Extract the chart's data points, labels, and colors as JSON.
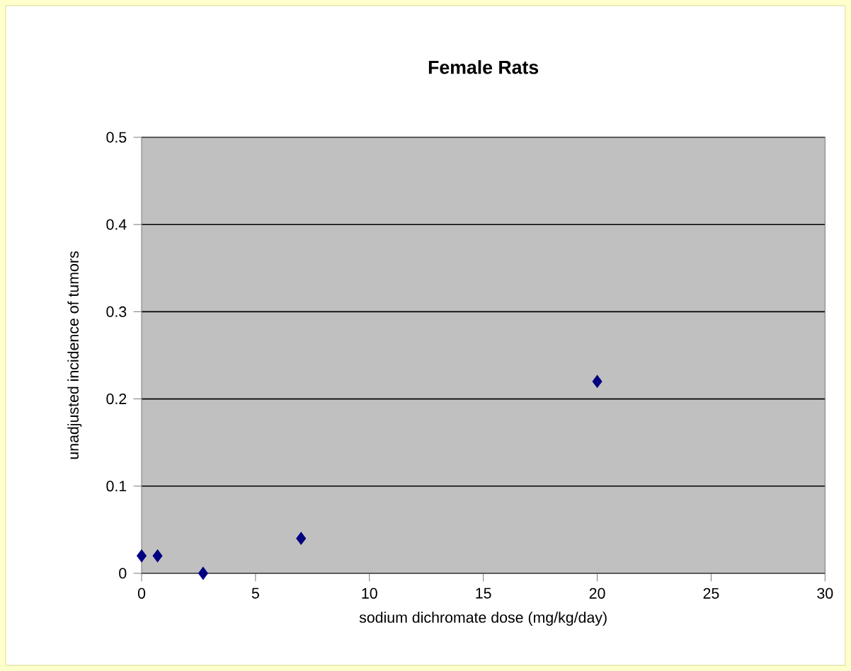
{
  "chart_data": {
    "type": "scatter",
    "title": "Female Rats",
    "xlabel": "sodium dichromate dose (mg/kg/day)",
    "ylabel": "unadjusted incidence of tumors",
    "x": [
      0,
      0.7,
      2.7,
      7,
      20
    ],
    "series": [
      {
        "color": "#000080",
        "values": [
          0.02,
          0.02,
          0,
          0.04,
          0.22
        ]
      }
    ],
    "xlim": [
      0,
      30
    ],
    "xticks": [
      0,
      5,
      10,
      15,
      20,
      25,
      30
    ],
    "ylim": [
      0,
      0.5
    ],
    "yticks": [
      0,
      0.1,
      0.2,
      0.3,
      0.4,
      0.5
    ],
    "grid": "y",
    "legend": false,
    "marker": "diamond"
  }
}
